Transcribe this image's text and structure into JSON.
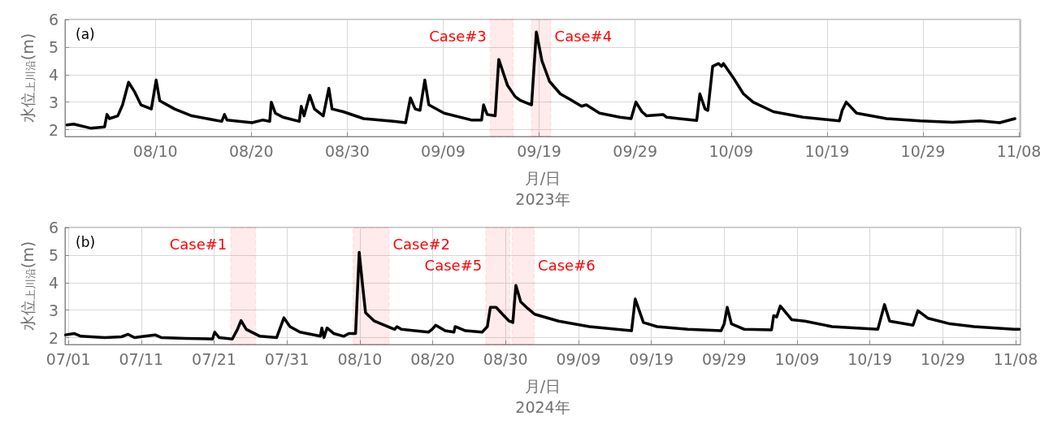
{
  "chart_data": [
    {
      "type": "line",
      "title": "(a)",
      "xlabel": "月/日\n2023年",
      "ylabel": "水位$_{上川沿}$(m)",
      "grid": true,
      "marker": "none",
      "line_style": "solid",
      "xlim": [
        "2023-07-31T14:00",
        "2023-11-08T04:00"
      ],
      "ylim": [
        1.75,
        6
      ],
      "yticks": [
        2,
        3,
        4,
        5,
        6
      ],
      "xticks": [
        {
          "value": "2023-08-10",
          "label": "08/10"
        },
        {
          "value": "2023-08-20",
          "label": "08/20"
        },
        {
          "value": "2023-08-30",
          "label": "08/30"
        },
        {
          "value": "2023-09-09",
          "label": "09/09"
        },
        {
          "value": "2023-09-19",
          "label": "09/19"
        },
        {
          "value": "2023-09-29",
          "label": "09/29"
        },
        {
          "value": "2023-10-09",
          "label": "10/09"
        },
        {
          "value": "2023-10-19",
          "label": "10/19"
        },
        {
          "value": "2023-10-29",
          "label": "10/29"
        },
        {
          "value": "2023-11-08",
          "label": "11/08"
        }
      ],
      "bands": [
        {
          "axis": "x",
          "from": "2023-09-13T22:00",
          "to": "2023-09-16T07:00",
          "label": "Case#3",
          "color": "#ff0000"
        },
        {
          "axis": "x",
          "from": "2023-09-18T05:00",
          "to": "2023-09-20T05:00",
          "label": "Case#4",
          "color": "#ff0000"
        }
      ],
      "series": [
        {
          "color": "#000000",
          "x": [
            "2023-07-31T19:00",
            "2023-08-01T12:00",
            "2023-08-03T07:00",
            "2023-08-04T17:00",
            "2023-08-04T23:00",
            "2023-08-05T05:00",
            "2023-08-06T02:00",
            "2023-08-06T14:00",
            "2023-08-07T05:00",
            "2023-08-07T19:00",
            "2023-08-08T12:00",
            "2023-08-09T14:00",
            "2023-08-10T02:00",
            "2023-08-10T11:00",
            "2023-08-12T00:00",
            "2023-08-13T19:00",
            "2023-08-16T22:00",
            "2023-08-17T05:00",
            "2023-08-17T11:00",
            "2023-08-20T02:00",
            "2023-08-21T05:00",
            "2023-08-21T22:00",
            "2023-08-22T02:00",
            "2023-08-22T12:00",
            "2023-08-23T07:00",
            "2023-08-25T00:00",
            "2023-08-25T05:00",
            "2023-08-25T12:00",
            "2023-08-26T02:00",
            "2023-08-26T14:00",
            "2023-08-27T12:00",
            "2023-08-28T02:00",
            "2023-08-28T10:00",
            "2023-08-29T14:00",
            "2023-08-31T17:00",
            "2023-09-03T19:00",
            "2023-09-05T02:00",
            "2023-09-05T14:00",
            "2023-09-06T02:00",
            "2023-09-06T14:00",
            "2023-09-07T02:00",
            "2023-09-07T12:00",
            "2023-09-09T02:00",
            "2023-09-11T22:00",
            "2023-09-13T00:00",
            "2023-09-13T05:00",
            "2023-09-13T14:00",
            "2023-09-14T10:00",
            "2023-09-14T19:00",
            "2023-09-15T17:00",
            "2023-09-16T12:00",
            "2023-09-17T00:00",
            "2023-09-18T05:00",
            "2023-09-18T17:00",
            "2023-09-19T07:00",
            "2023-09-20T02:00",
            "2023-09-21T05:00",
            "2023-09-22T05:00",
            "2023-09-23T10:00",
            "2023-09-23T22:00",
            "2023-09-25T07:00",
            "2023-09-27T10:00",
            "2023-09-28T14:00",
            "2023-09-29T02:00",
            "2023-09-29T17:00",
            "2023-09-30T05:00",
            "2023-10-01T22:00",
            "2023-10-02T07:00",
            "2023-10-03T14:00",
            "2023-10-05T10:00",
            "2023-10-05T18:00",
            "2023-10-06T07:00",
            "2023-10-06T14:00",
            "2023-10-07T02:00",
            "2023-10-07T17:00",
            "2023-10-08T00:00",
            "2023-10-08T05:00",
            "2023-10-09T05:00",
            "2023-10-10T07:00",
            "2023-10-11T07:00",
            "2023-10-13T10:00",
            "2023-10-16T12:00",
            "2023-10-20T07:00",
            "2023-10-20T14:00",
            "2023-10-21T00:00",
            "2023-10-22T02:00",
            "2023-10-25T05:00",
            "2023-10-28T17:00",
            "2023-11-01T02:00",
            "2023-11-03T22:00",
            "2023-11-06T00:00",
            "2023-11-07T14:00"
          ],
          "values": [
            2.17,
            2.2,
            2.05,
            2.1,
            2.55,
            2.4,
            2.5,
            2.9,
            3.72,
            3.4,
            2.9,
            2.75,
            3.8,
            3.05,
            2.75,
            2.5,
            2.3,
            2.55,
            2.35,
            2.25,
            2.35,
            2.3,
            3.0,
            2.6,
            2.45,
            2.3,
            2.85,
            2.5,
            3.25,
            2.75,
            2.5,
            3.5,
            2.75,
            2.65,
            2.4,
            2.3,
            2.25,
            3.15,
            2.75,
            2.7,
            3.8,
            2.9,
            2.6,
            2.35,
            2.35,
            2.9,
            2.55,
            2.5,
            4.55,
            3.6,
            3.2,
            3.07,
            2.9,
            5.55,
            4.5,
            3.75,
            3.3,
            3.1,
            2.85,
            2.9,
            2.6,
            2.45,
            2.4,
            3.0,
            2.65,
            2.5,
            2.55,
            2.45,
            2.4,
            2.33,
            3.3,
            2.75,
            2.7,
            4.3,
            4.4,
            4.3,
            4.4,
            3.9,
            3.3,
            3.0,
            2.65,
            2.45,
            2.32,
            2.7,
            3.0,
            2.6,
            2.4,
            2.32,
            2.27,
            2.32,
            2.25,
            2.4
          ]
        }
      ]
    },
    {
      "type": "line",
      "title": "(b)",
      "xlabel": "月/日\n2024年",
      "ylabel": "水位$_{上川沿}$(m)",
      "grid": true,
      "marker": "none",
      "line_style": "solid",
      "xlim": [
        "2024-06-30T13:00",
        "2024-11-08T16:00"
      ],
      "ylim": [
        1.75,
        6
      ],
      "yticks": [
        2,
        3,
        4,
        5,
        6
      ],
      "xticks": [
        {
          "value": "2024-07-01",
          "label": "07/01"
        },
        {
          "value": "2024-07-11",
          "label": "07/11"
        },
        {
          "value": "2024-07-21",
          "label": "07/21"
        },
        {
          "value": "2024-07-31",
          "label": "07/31"
        },
        {
          "value": "2024-08-10",
          "label": "08/10"
        },
        {
          "value": "2024-08-20",
          "label": "08/20"
        },
        {
          "value": "2024-08-30",
          "label": "08/30"
        },
        {
          "value": "2024-09-09",
          "label": "09/09"
        },
        {
          "value": "2024-09-19",
          "label": "09/19"
        },
        {
          "value": "2024-09-29",
          "label": "09/29"
        },
        {
          "value": "2024-10-09",
          "label": "10/09"
        },
        {
          "value": "2024-10-19",
          "label": "10/19"
        },
        {
          "value": "2024-10-29",
          "label": "10/29"
        },
        {
          "value": "2024-11-08",
          "label": "11/08"
        }
      ],
      "bands": [
        {
          "axis": "x",
          "from": "2024-07-23T07:00",
          "to": "2024-07-26T17:00",
          "label": "Case#1",
          "color": "#ff0000"
        },
        {
          "axis": "x",
          "from": "2024-08-09T02:00",
          "to": "2024-08-14T00:00",
          "label": "Case#2",
          "color": "#ff0000"
        },
        {
          "axis": "x",
          "from": "2024-08-27T07:00",
          "to": "2024-08-30T14:00",
          "label": "Case#5",
          "color": "#ff0000"
        },
        {
          "axis": "x",
          "from": "2024-08-30T22:00",
          "to": "2024-09-02T22:00",
          "label": "Case#6",
          "color": "#ff0000"
        }
      ],
      "series": [
        {
          "color": "#000000",
          "x": [
            "2024-06-30T15:00",
            "2024-07-01T19:00",
            "2024-07-02T17:00",
            "2024-07-06T00:00",
            "2024-07-08T07:00",
            "2024-07-09T05:00",
            "2024-07-10T02:00",
            "2024-07-11T12:00",
            "2024-07-12T22:00",
            "2024-07-13T19:00",
            "2024-07-17T02:00",
            "2024-07-20T19:00",
            "2024-07-21T02:00",
            "2024-07-21T17:00",
            "2024-07-23T12:00",
            "2024-07-24T05:00",
            "2024-07-24T17:00",
            "2024-07-25T10:00",
            "2024-07-27T07:00",
            "2024-07-29T14:00",
            "2024-07-30T00:00",
            "2024-07-30T14:00",
            "2024-07-31T10:00",
            "2024-08-01T19:00",
            "2024-08-04T14:00",
            "2024-08-04T19:00",
            "2024-08-05T02:00",
            "2024-08-05T12:00",
            "2024-08-06T10:00",
            "2024-08-07T19:00",
            "2024-08-08T12:00",
            "2024-08-09T10:00",
            "2024-08-09T22:00",
            "2024-08-10T10:00",
            "2024-08-10T19:00",
            "2024-08-12T00:00",
            "2024-08-14T07:00",
            "2024-08-14T19:00",
            "2024-08-15T02:00",
            "2024-08-15T17:00",
            "2024-08-19T10:00",
            "2024-08-19T22:00",
            "2024-08-20T10:00",
            "2024-08-21T17:00",
            "2024-08-22T22:00",
            "2024-08-23T02:00",
            "2024-08-24T12:00",
            "2024-08-26T19:00",
            "2024-08-27T12:00",
            "2024-08-27T22:00",
            "2024-08-28T17:00",
            "2024-08-29T14:00",
            "2024-08-30T12:00",
            "2024-08-31T00:00",
            "2024-08-31T10:00",
            "2024-09-01T02:00",
            "2024-09-02T02:00",
            "2024-09-03T00:00",
            "2024-09-06T07:00",
            "2024-09-10T12:00",
            "2024-09-15T02:00",
            "2024-09-16T07:00",
            "2024-09-16T19:00",
            "2024-09-17T22:00",
            "2024-09-19T19:00",
            "2024-09-24T00:00",
            "2024-09-28T14:00",
            "2024-09-29T00:00",
            "2024-09-29T10:00",
            "2024-09-30T00:00",
            "2024-10-01T19:00",
            "2024-10-05T12:00",
            "2024-10-05T19:00",
            "2024-10-06T05:00",
            "2024-10-06T17:00",
            "2024-10-08T07:00",
            "2024-10-10T02:00",
            "2024-10-13T19:00",
            "2024-10-20T02:00",
            "2024-10-21T00:00",
            "2024-10-21T17:00",
            "2024-10-24T22:00",
            "2024-10-25T14:00",
            "2024-10-27T00:00",
            "2024-10-30T00:00",
            "2024-11-02T07:00",
            "2024-11-07T19:00",
            "2024-11-08T12:00"
          ],
          "values": [
            2.1,
            2.15,
            2.05,
            2.0,
            2.03,
            2.12,
            2.0,
            2.05,
            2.1,
            2.0,
            1.97,
            1.95,
            2.2,
            2.0,
            1.95,
            2.3,
            2.62,
            2.3,
            2.05,
            2.0,
            2.3,
            2.72,
            2.4,
            2.2,
            2.05,
            2.35,
            2.0,
            2.35,
            2.15,
            2.05,
            2.15,
            2.15,
            5.1,
            3.8,
            2.9,
            2.6,
            2.35,
            2.3,
            2.4,
            2.3,
            2.2,
            2.3,
            2.45,
            2.25,
            2.2,
            2.4,
            2.25,
            2.2,
            2.4,
            3.1,
            3.1,
            2.85,
            2.6,
            2.55,
            3.9,
            3.3,
            3.05,
            2.85,
            2.6,
            2.4,
            2.28,
            2.25,
            3.4,
            2.55,
            2.4,
            2.3,
            2.25,
            2.5,
            3.1,
            2.5,
            2.3,
            2.28,
            2.8,
            2.75,
            3.15,
            2.65,
            2.6,
            2.4,
            2.3,
            3.2,
            2.6,
            2.45,
            2.98,
            2.7,
            2.5,
            2.4,
            2.3,
            2.3
          ]
        }
      ]
    }
  ]
}
